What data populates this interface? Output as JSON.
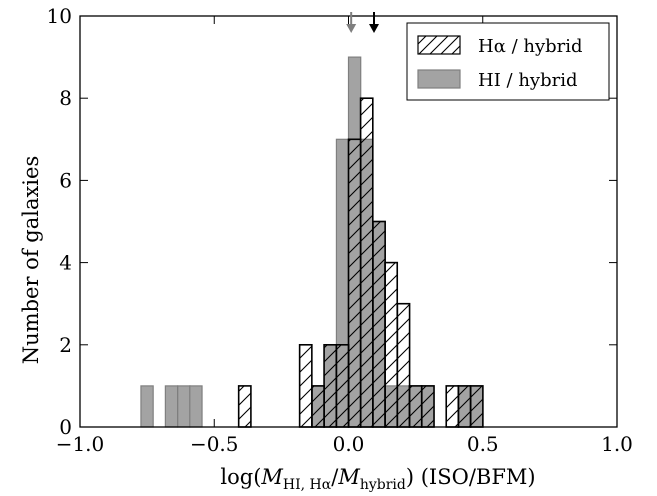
{
  "chart_data": {
    "type": "bar",
    "xlabel_parts": [
      "log(",
      "M",
      "HI, Hα",
      "/",
      "M",
      "hybrid",
      ") (ISO/BFM)"
    ],
    "ylabel": "Number of galaxies",
    "xlim": [
      -1.0,
      1.0
    ],
    "ylim": [
      0,
      10
    ],
    "xticks": [
      -1.0,
      -0.5,
      0.0,
      0.5,
      1.0
    ],
    "xtick_labels": [
      "−1.0",
      "−0.5",
      "0.0",
      "0.5",
      "1.0"
    ],
    "yticks": [
      0,
      2,
      4,
      6,
      8,
      10
    ],
    "ytick_labels": [
      "0",
      "2",
      "4",
      "6",
      "8",
      "10"
    ],
    "bin_width": 0.0455,
    "legend": {
      "placement": "top-right",
      "entries": [
        {
          "series": "halpha",
          "label": "Hα / hybrid"
        },
        {
          "series": "hi",
          "label": "HI / hybrid"
        }
      ]
    },
    "series": [
      {
        "id": "hi",
        "label": "HI / hybrid",
        "style": "filled",
        "color": "#a3a3a3",
        "edge_color": "#7f7f7f",
        "bin_left": [
          -0.773,
          -0.682,
          -0.636,
          -0.591,
          -0.136,
          -0.091,
          -0.045,
          0.0,
          0.045,
          0.091,
          0.136,
          0.182,
          0.227,
          0.273,
          0.409,
          0.455
        ],
        "counts": [
          1,
          1,
          1,
          1,
          1,
          2,
          7,
          9,
          7,
          5,
          1,
          1,
          1,
          1,
          1,
          1
        ],
        "marker_x": 0.01
      },
      {
        "id": "halpha",
        "label": "Hα / hybrid",
        "style": "hatched",
        "color": "#000000",
        "bin_left": [
          -0.409,
          -0.182,
          -0.136,
          -0.091,
          -0.045,
          0.0,
          0.045,
          0.091,
          0.136,
          0.182,
          0.227,
          0.273,
          0.364,
          0.409,
          0.455
        ],
        "counts": [
          1,
          2,
          1,
          2,
          2,
          7,
          8,
          5,
          4,
          3,
          1,
          1,
          1,
          1,
          1
        ],
        "marker_x": 0.095
      }
    ]
  }
}
